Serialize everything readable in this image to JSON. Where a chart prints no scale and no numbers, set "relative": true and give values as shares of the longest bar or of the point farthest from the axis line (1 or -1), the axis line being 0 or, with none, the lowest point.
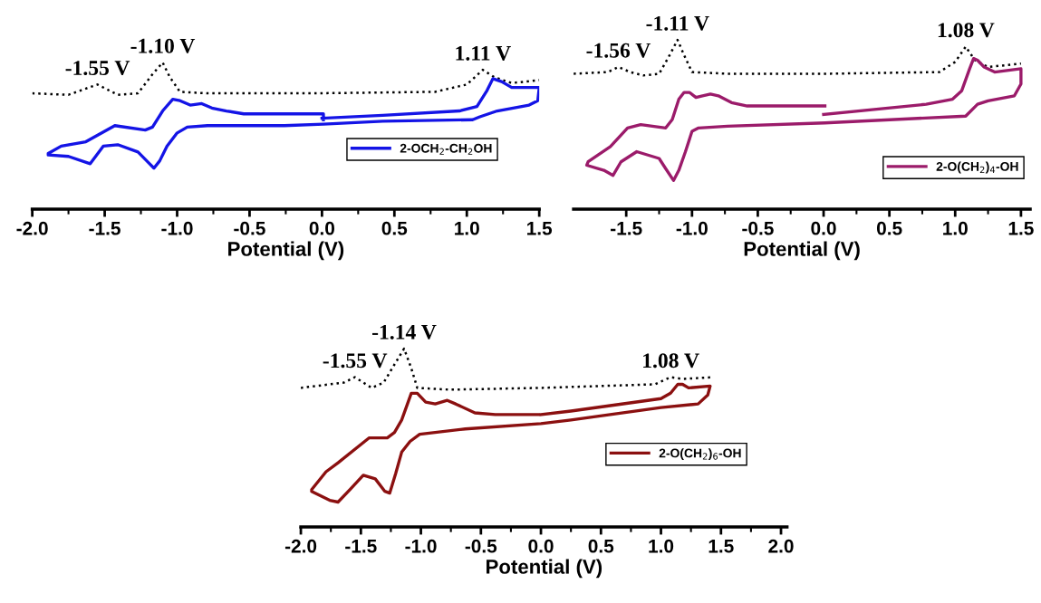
{
  "chart_data": [
    {
      "type": "line",
      "relative": true,
      "xlabel": "Potential (V)",
      "xlim": [
        -2.0,
        1.5
      ],
      "xticks": [
        {
          "value": -2.0,
          "label": "-2.0"
        },
        {
          "value": -1.5,
          "label": "-1.5"
        },
        {
          "value": -1.0,
          "label": "-1.0"
        },
        {
          "value": -0.5,
          "label": "-0.5"
        },
        {
          "value": 0.0,
          "label": "0.0"
        },
        {
          "value": 0.5,
          "label": "0.5"
        },
        {
          "value": 1.0,
          "label": "1.0"
        },
        {
          "value": 1.5,
          "label": "1.5"
        }
      ],
      "tick_labels": "x",
      "legend": "right",
      "marker": "none",
      "series": [
        {
          "color": "#000000",
          "line_style": "dotted",
          "x": [
            -2.0,
            -1.75,
            -1.55,
            -1.41,
            -1.27,
            -1.17,
            -1.1,
            -1.05,
            -0.98,
            -0.79,
            -0.06,
            0.78,
            1.0,
            1.11,
            1.19,
            1.31,
            1.5
          ],
          "values": [
            0.79,
            0.78,
            0.85,
            0.78,
            0.79,
            0.92,
            1.0,
            0.9,
            0.8,
            0.79,
            0.79,
            0.8,
            0.85,
            0.95,
            0.9,
            0.86,
            0.88
          ]
        },
        {
          "name": "2-OCH$_{2}$-CH$_{2}$OH",
          "color": "#1414e6",
          "line_style": "solid",
          "x": [
            0.0,
            0.42,
            0.95,
            1.07,
            1.14,
            1.18,
            1.24,
            1.31,
            1.5,
            1.49,
            1.43,
            1.21,
            1.09,
            1.04,
            0.42,
            0.01,
            -0.26,
            -0.79,
            -0.93,
            -1.0,
            -1.07,
            -1.12,
            -1.16,
            -1.19,
            -1.27,
            -1.41,
            -1.51,
            -1.6,
            -1.75,
            -1.89,
            -1.89,
            -1.8,
            -1.63,
            -1.43,
            -1.22,
            -1.17,
            -1.1,
            -1.03,
            -0.98,
            -0.91,
            -0.83,
            -0.76,
            -0.66,
            -0.54,
            0.01,
            0.01
          ],
          "values": [
            0.62,
            0.64,
            0.67,
            0.7,
            0.81,
            0.89,
            0.87,
            0.83,
            0.83,
            0.74,
            0.71,
            0.67,
            0.63,
            0.61,
            0.6,
            0.58,
            0.57,
            0.57,
            0.56,
            0.52,
            0.43,
            0.33,
            0.28,
            0.31,
            0.39,
            0.44,
            0.43,
            0.31,
            0.36,
            0.37,
            0.38,
            0.43,
            0.46,
            0.57,
            0.54,
            0.56,
            0.67,
            0.75,
            0.74,
            0.71,
            0.72,
            0.69,
            0.67,
            0.65,
            0.65,
            0.61
          ]
        }
      ],
      "annotations": [
        {
          "text": "-1.55 V",
          "x": -1.55,
          "y": 0.85
        },
        {
          "text": "-1.10 V",
          "x": -1.1,
          "y": 1.0
        },
        {
          "text": "1.11 V",
          "x": 1.11,
          "y": 0.95
        }
      ]
    },
    {
      "type": "line",
      "relative": true,
      "xlabel": "Potential (V)",
      "xlim": [
        -1.9,
        1.57
      ],
      "xticks": [
        {
          "value": -1.5,
          "label": "-1.5"
        },
        {
          "value": -1.0,
          "label": "-1.0"
        },
        {
          "value": -0.5,
          "label": "-0.5"
        },
        {
          "value": 0.0,
          "label": "0.0"
        },
        {
          "value": 0.5,
          "label": "0.5"
        },
        {
          "value": 1.0,
          "label": "1.0"
        },
        {
          "value": 1.5,
          "label": "1.5"
        }
      ],
      "tick_labels": "x",
      "legend": "lower right",
      "marker": "none",
      "series": [
        {
          "color": "#000000",
          "line_style": "dotted",
          "x": [
            -1.9,
            -1.64,
            -1.56,
            -1.47,
            -1.37,
            -1.25,
            -1.17,
            -1.11,
            -1.06,
            -1.0,
            -0.73,
            0.01,
            0.88,
            1.0,
            1.08,
            1.15,
            1.25,
            1.5
          ],
          "values": [
            0.8,
            0.81,
            0.84,
            0.81,
            0.79,
            0.8,
            0.91,
            1.0,
            0.91,
            0.81,
            0.8,
            0.8,
            0.81,
            0.87,
            0.96,
            0.88,
            0.84,
            0.86
          ]
        },
        {
          "name": "2-O(CH$_{2}$)$_{4}$-OH",
          "color": "#9b1b6a",
          "line_style": "solid",
          "x": [
            0.0,
            0.78,
            0.98,
            1.05,
            1.11,
            1.14,
            1.17,
            1.22,
            1.3,
            1.5,
            1.5,
            1.45,
            1.25,
            1.17,
            1.08,
            0.01,
            -0.73,
            -0.95,
            -1.0,
            -1.05,
            -1.1,
            -1.14,
            -1.2,
            -1.25,
            -1.42,
            -1.54,
            -1.6,
            -1.67,
            -1.8,
            -1.79,
            -1.62,
            -1.49,
            -1.39,
            -1.2,
            -1.15,
            -1.1,
            -1.06,
            -1.02,
            -0.97,
            -0.92,
            -0.86,
            -0.8,
            -0.7,
            -0.58,
            0.01
          ],
          "values": [
            0.56,
            0.62,
            0.65,
            0.7,
            0.83,
            0.89,
            0.88,
            0.84,
            0.81,
            0.83,
            0.74,
            0.67,
            0.64,
            0.62,
            0.55,
            0.51,
            0.49,
            0.48,
            0.46,
            0.34,
            0.23,
            0.17,
            0.24,
            0.3,
            0.34,
            0.28,
            0.2,
            0.23,
            0.26,
            0.28,
            0.37,
            0.48,
            0.5,
            0.48,
            0.53,
            0.65,
            0.69,
            0.69,
            0.66,
            0.67,
            0.68,
            0.67,
            0.63,
            0.61,
            0.61
          ]
        }
      ],
      "annotations": [
        {
          "text": "-1.56 V",
          "x": -1.56,
          "y": 0.84
        },
        {
          "text": "-1.11 V",
          "x": -1.11,
          "y": 1.0
        },
        {
          "text": "1.08 V",
          "x": 1.08,
          "y": 0.96
        }
      ]
    },
    {
      "type": "line",
      "relative": true,
      "xlabel": "Potential (V)",
      "xlim": [
        -2.0,
        2.05
      ],
      "xticks": [
        {
          "value": -2.0,
          "label": "-2.0"
        },
        {
          "value": -1.5,
          "label": "-1.5"
        },
        {
          "value": -1.0,
          "label": "-1.0"
        },
        {
          "value": -0.5,
          "label": "-0.5"
        },
        {
          "value": 0.0,
          "label": "0.0"
        },
        {
          "value": 0.5,
          "label": "0.5"
        },
        {
          "value": 1.0,
          "label": "1.0"
        },
        {
          "value": 1.5,
          "label": "1.5"
        },
        {
          "value": 2.0,
          "label": "2.0"
        }
      ],
      "tick_labels": "x",
      "legend": "right",
      "marker": "none",
      "series": [
        {
          "color": "#000000",
          "line_style": "dotted",
          "x": [
            -2.0,
            -1.64,
            -1.55,
            -1.41,
            -1.31,
            -1.23,
            -1.14,
            -1.08,
            -1.03,
            -0.76,
            0.0,
            0.95,
            1.08,
            1.18,
            1.43
          ],
          "values": [
            0.78,
            0.81,
            0.84,
            0.78,
            0.81,
            0.9,
            1.0,
            0.89,
            0.78,
            0.77,
            0.78,
            0.8,
            0.84,
            0.83,
            0.84
          ]
        },
        {
          "name": "2-O(CH$_{2}$)$_{6}$-OH",
          "color": "#8b1010",
          "line_style": "solid",
          "x": [
            0.0,
            0.25,
            1.0,
            1.08,
            1.14,
            1.18,
            1.23,
            1.41,
            1.39,
            1.31,
            1.0,
            0.25,
            0.0,
            -0.63,
            -1.01,
            -1.09,
            -1.16,
            -1.21,
            -1.26,
            -1.3,
            -1.38,
            -1.48,
            -1.59,
            -1.69,
            -1.76,
            -1.91,
            -1.91,
            -1.79,
            -1.69,
            -1.43,
            -1.28,
            -1.22,
            -1.16,
            -1.08,
            -1.03,
            -0.96,
            -0.88,
            -0.78,
            -0.71,
            -0.55,
            -0.38,
            -0.02
          ],
          "values": [
            0.63,
            0.65,
            0.72,
            0.75,
            0.8,
            0.8,
            0.78,
            0.79,
            0.74,
            0.69,
            0.67,
            0.6,
            0.58,
            0.55,
            0.52,
            0.48,
            0.42,
            0.3,
            0.19,
            0.2,
            0.27,
            0.29,
            0.21,
            0.14,
            0.15,
            0.2,
            0.21,
            0.31,
            0.36,
            0.5,
            0.5,
            0.53,
            0.6,
            0.75,
            0.75,
            0.7,
            0.69,
            0.71,
            0.69,
            0.64,
            0.63,
            0.63
          ]
        }
      ],
      "annotations": [
        {
          "text": "-1.55 V",
          "x": -1.55,
          "y": 0.84
        },
        {
          "text": "-1.14 V",
          "x": -1.14,
          "y": 1.0
        },
        {
          "text": "1.08 V",
          "x": 1.08,
          "y": 0.84
        }
      ]
    }
  ]
}
